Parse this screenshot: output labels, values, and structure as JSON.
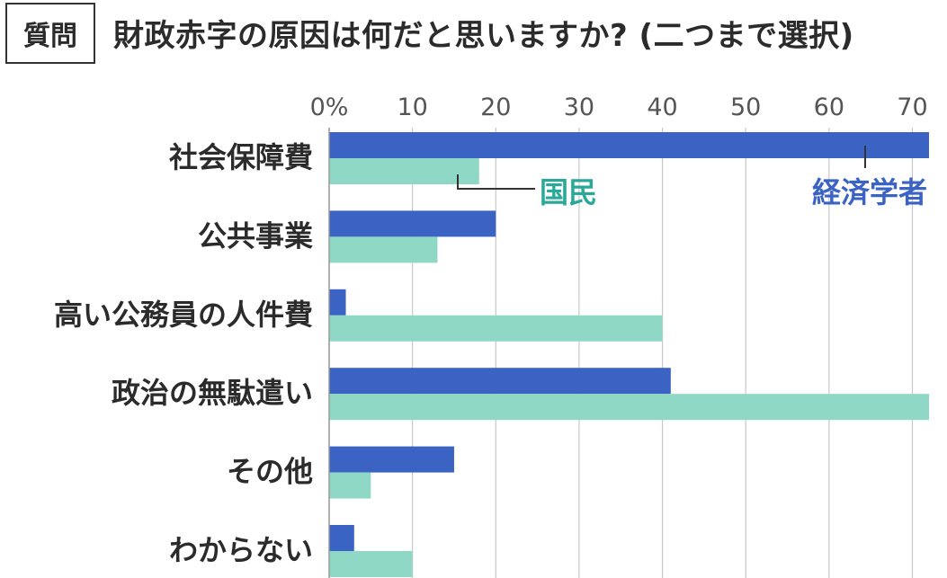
{
  "header": {
    "badge": "質問",
    "question": "財政赤字の原因は何だと思いますか? (二つまで選択)"
  },
  "colors": {
    "economists": "#3a63c4",
    "public": "#8fd8c6",
    "gridline": "#c8c8c8",
    "public_label": "#2aa898",
    "economists_label": "#3a63c4",
    "text": "#2b2b2b"
  },
  "chart_data": {
    "type": "bar",
    "orientation": "horizontal",
    "title": "財政赤字の原因は何だと思いますか? (二つまで選択)",
    "xlabel": "",
    "ylabel": "",
    "xlim": [
      0,
      72
    ],
    "ticks": [
      0,
      10,
      20,
      30,
      40,
      50,
      60,
      70
    ],
    "tick_labels": [
      "0%",
      "10",
      "20",
      "30",
      "40",
      "50",
      "60",
      "70"
    ],
    "grid": true,
    "categories": [
      "社会保障費",
      "公共事業",
      "高い公務員の人件費",
      "政治の無駄遣い",
      "その他",
      "わからない"
    ],
    "series": [
      {
        "name": "経済学者",
        "values": [
          72,
          20,
          2,
          41,
          15,
          3
        ]
      },
      {
        "name": "国民",
        "values": [
          18,
          13,
          40,
          72,
          5,
          10
        ]
      }
    ]
  }
}
